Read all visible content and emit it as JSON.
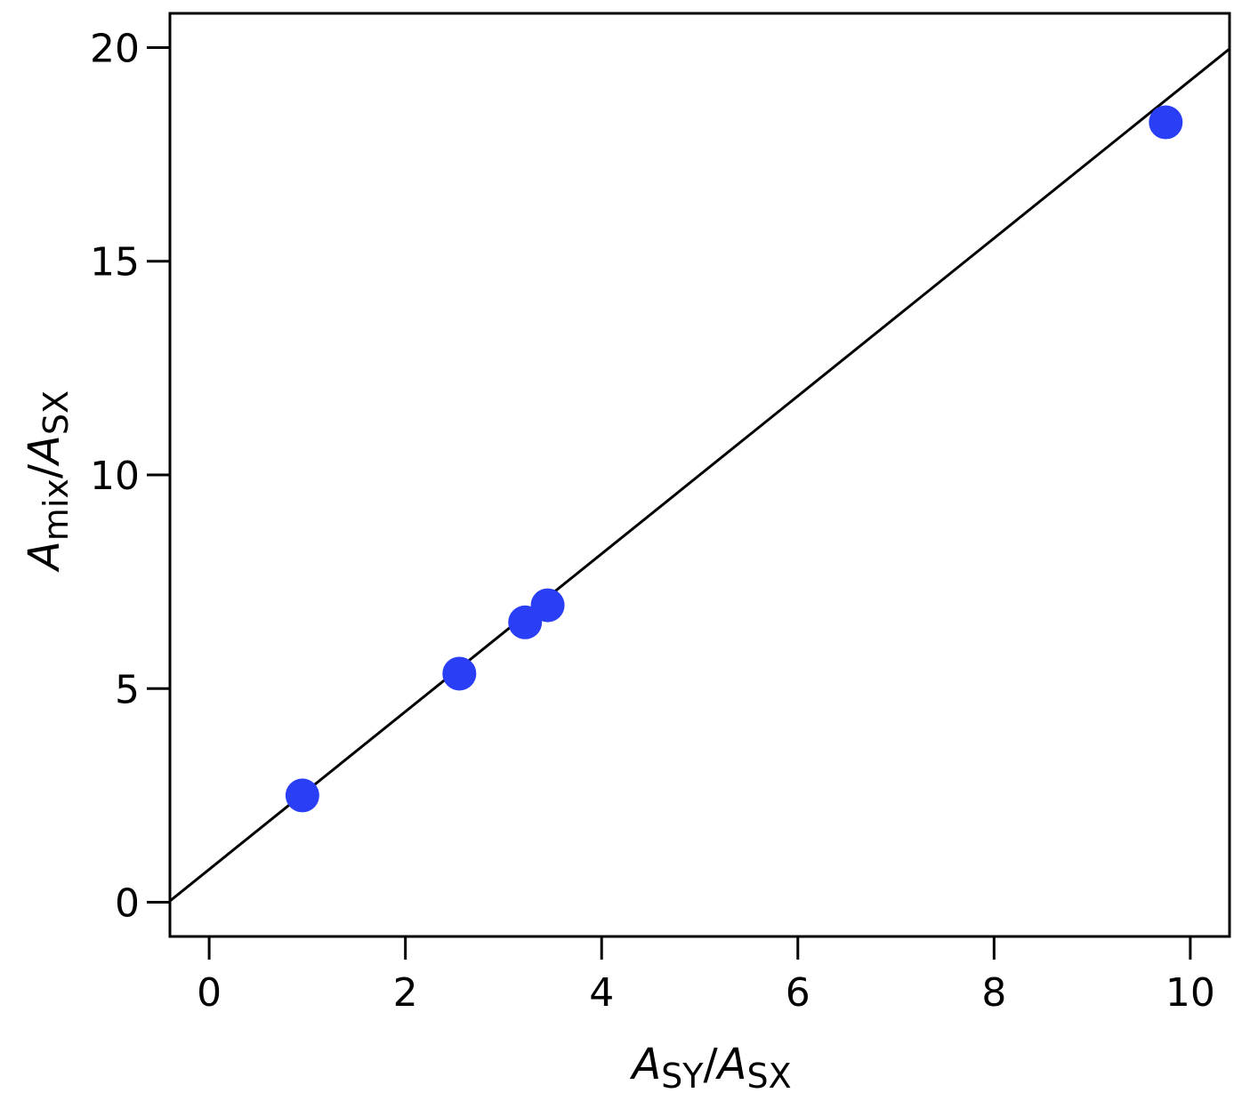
{
  "chart_data": {
    "type": "scatter",
    "title": "",
    "xlabel": {
      "main": "A",
      "sub": "SY",
      "sep": "/",
      "main2": "A",
      "sub2": "SX"
    },
    "ylabel": {
      "main": "A",
      "sub": "mix",
      "sep": "/",
      "main2": "A",
      "sub2": "SX"
    },
    "xlim": [
      -0.4,
      10.4
    ],
    "ylim": [
      -0.8,
      20.8
    ],
    "xticks": [
      0,
      2,
      4,
      6,
      8,
      10
    ],
    "yticks": [
      0,
      5,
      10,
      15,
      20
    ],
    "xtick_labels": [
      "0",
      "2",
      "4",
      "6",
      "8",
      "10"
    ],
    "ytick_labels": [
      "0",
      "5",
      "10",
      "15",
      "20"
    ],
    "grid": false,
    "legend": "none",
    "series": [
      {
        "type": "scatter",
        "color": "#2a3ff5",
        "points": [
          {
            "x": 0.95,
            "y": 2.5
          },
          {
            "x": 2.55,
            "y": 5.35
          },
          {
            "x": 3.22,
            "y": 6.55
          },
          {
            "x": 3.45,
            "y": 6.95
          },
          {
            "x": 9.75,
            "y": 18.25
          }
        ]
      },
      {
        "type": "line",
        "color": "#000000",
        "fit": {
          "slope": 1.846,
          "intercept": 0.77
        }
      }
    ]
  }
}
